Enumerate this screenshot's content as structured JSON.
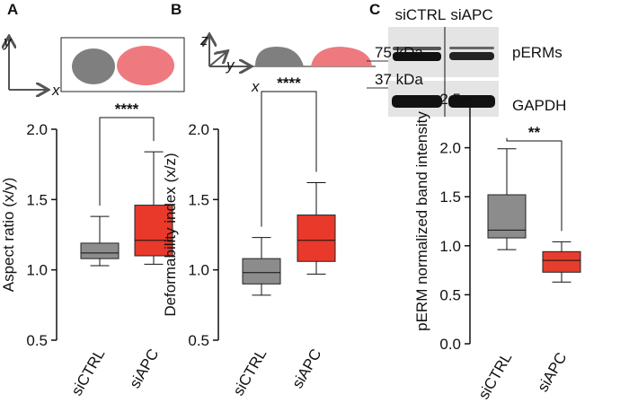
{
  "chart_data": [
    {
      "type": "box",
      "panel": "A",
      "ylabel": "Aspect ratio (x/y)",
      "schematic_axes": [
        "y",
        "x"
      ],
      "significance": "****",
      "categories": [
        "siCTRL",
        "siAPC"
      ],
      "boxes": [
        {
          "whislo": 1.03,
          "q1": 1.08,
          "med": 1.12,
          "q3": 1.19,
          "whishi": 1.38,
          "color": "#8c8c8c"
        },
        {
          "whislo": 1.04,
          "q1": 1.1,
          "med": 1.21,
          "q3": 1.46,
          "whishi": 1.84,
          "color": "#e8392b"
        }
      ],
      "ylim": [
        0.5,
        2.0
      ],
      "yticks": [
        {
          "value": 0.5,
          "label": "0.5"
        },
        {
          "value": 1,
          "label": "1.0"
        },
        {
          "value": 1.5,
          "label": "1.5"
        },
        {
          "value": 2,
          "label": "2.0"
        }
      ]
    },
    {
      "type": "box",
      "panel": "B",
      "ylabel": "Deformability index (x/z)",
      "schematic_axes": [
        "z",
        "y",
        "x"
      ],
      "significance": "****",
      "categories": [
        "siCTRL",
        "siAPC"
      ],
      "boxes": [
        {
          "whislo": 0.82,
          "q1": 0.9,
          "med": 0.98,
          "q3": 1.08,
          "whishi": 1.23,
          "color": "#8c8c8c"
        },
        {
          "whislo": 0.97,
          "q1": 1.06,
          "med": 1.21,
          "q3": 1.39,
          "whishi": 1.62,
          "color": "#e8392b"
        }
      ],
      "ylim": [
        0.5,
        2.0
      ],
      "yticks": [
        {
          "value": 0.5,
          "label": "0.5"
        },
        {
          "value": 1,
          "label": "1.0"
        },
        {
          "value": 1.5,
          "label": "1.5"
        },
        {
          "value": 2,
          "label": "2.0"
        }
      ]
    },
    {
      "type": "box",
      "panel": "C",
      "ylabel": "pERM normalized band intensity",
      "significance": "**",
      "blot": {
        "lanes": [
          "siCTRL",
          "siAPC"
        ],
        "bands": [
          "pERMs",
          "GAPDH"
        ],
        "markers": [
          "75 kDa",
          "37 kDa"
        ]
      },
      "categories": [
        "siCTRL",
        "siAPC"
      ],
      "boxes": [
        {
          "whislo": 0.96,
          "q1": 1.08,
          "med": 1.16,
          "q3": 1.52,
          "whishi": 1.99,
          "color": "#8c8c8c"
        },
        {
          "whislo": 0.63,
          "q1": 0.73,
          "med": 0.85,
          "q3": 0.94,
          "whishi": 1.04,
          "color": "#e53d2e"
        }
      ],
      "ylim": [
        0,
        2.5
      ],
      "yticks": [
        {
          "value": 0,
          "label": "0.0"
        },
        {
          "value": 0.5,
          "label": "0.5"
        },
        {
          "value": 1,
          "label": "1.0"
        },
        {
          "value": 1.5,
          "label": "1.5"
        },
        {
          "value": 2,
          "label": "2.0"
        },
        {
          "value": 2.5,
          "label": "2.5"
        }
      ]
    }
  ]
}
